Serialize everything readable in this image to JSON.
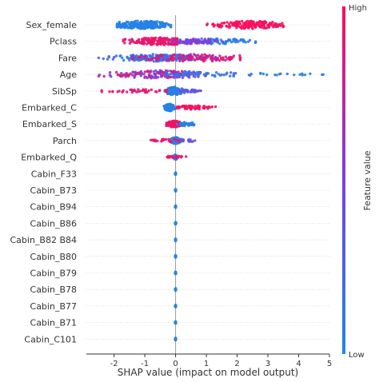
{
  "chart_data": {
    "type": "scatter",
    "subtype": "shap-beeswarm",
    "title": "",
    "xlabel": "SHAP value (impact on model output)",
    "ylabel": "",
    "xlim": [
      -2.9,
      5.0
    ],
    "xticks": [
      -2,
      -1,
      0,
      1,
      2,
      3,
      4,
      5
    ],
    "grid": false,
    "zero_line": true,
    "colorbar": {
      "label": "Feature value",
      "high_label": "High",
      "low_label": "Low",
      "low_color": "#1E88E5",
      "high_color": "#FF0D57",
      "mid_color": "#7B3FE4"
    },
    "features": [
      {
        "name": "Sex_female",
        "groups": [
          {
            "center": -1.05,
            "sd": 0.5,
            "min": -1.9,
            "max": -0.15,
            "n": 230,
            "spread": 5,
            "c": [
              0.0,
              0.08
            ]
          },
          {
            "center": 2.4,
            "sd": 0.55,
            "min": 0.1,
            "max": 3.5,
            "n": 170,
            "spread": 5,
            "c": [
              0.92,
              1.0
            ]
          }
        ]
      },
      {
        "name": "Pclass",
        "groups": [
          {
            "center": -0.5,
            "sd": 0.55,
            "min": -1.7,
            "max": 0.05,
            "n": 160,
            "spread": 5,
            "c": [
              0.85,
              1.0
            ]
          },
          {
            "center": 1.2,
            "sd": 0.7,
            "min": 0.15,
            "max": 2.6,
            "n": 100,
            "spread": 3.5,
            "c": [
              0.0,
              0.15
            ]
          },
          {
            "center": 0.55,
            "sd": 0.4,
            "min": -0.1,
            "max": 1.6,
            "n": 60,
            "spread": 3.5,
            "c": [
              0.45,
              0.6
            ]
          }
        ]
      },
      {
        "name": "Fare",
        "groups": [
          {
            "center": -0.6,
            "sd": 0.75,
            "min": -2.5,
            "max": 0.9,
            "n": 170,
            "spread": 4.5,
            "c": [
              0.0,
              0.3
            ]
          },
          {
            "center": 0.6,
            "sd": 0.9,
            "min": -1.4,
            "max": 2.1,
            "n": 140,
            "spread": 4.5,
            "c": [
              0.6,
              1.0
            ]
          }
        ]
      },
      {
        "name": "Age",
        "groups": [
          {
            "center": -0.4,
            "sd": 0.85,
            "min": -2.5,
            "max": 1.5,
            "n": 180,
            "spread": 5,
            "c": [
              0.35,
              1.0
            ]
          },
          {
            "center": 0.6,
            "sd": 1.1,
            "min": -0.3,
            "max": 4.8,
            "n": 80,
            "spread": 3,
            "c": [
              0.0,
              0.25
            ]
          },
          {
            "center": 3.9,
            "sd": 0.6,
            "min": 2.8,
            "max": 4.8,
            "n": 14,
            "spread": 1,
            "c": [
              0.0,
              0.1
            ]
          }
        ]
      },
      {
        "name": "SibSp",
        "groups": [
          {
            "center": -0.05,
            "sd": 0.15,
            "min": -0.35,
            "max": 0.3,
            "n": 130,
            "spread": 5,
            "c": [
              0.0,
              0.15
            ]
          },
          {
            "center": 0.5,
            "sd": 0.2,
            "min": 0.15,
            "max": 0.9,
            "n": 30,
            "spread": 2,
            "c": [
              0.25,
              0.45
            ]
          },
          {
            "center": -1.3,
            "sd": 0.55,
            "min": -2.4,
            "max": -0.3,
            "n": 40,
            "spread": 2,
            "c": [
              0.85,
              1.0
            ]
          }
        ]
      },
      {
        "name": "Embarked_C",
        "groups": [
          {
            "center": -0.2,
            "sd": 0.08,
            "min": -0.38,
            "max": -0.02,
            "n": 130,
            "spread": 4.5,
            "c": [
              0.0,
              0.08
            ]
          },
          {
            "center": 0.55,
            "sd": 0.3,
            "min": 0.05,
            "max": 1.3,
            "n": 60,
            "spread": 2.5,
            "c": [
              0.9,
              1.0
            ]
          }
        ]
      },
      {
        "name": "Embarked_S",
        "groups": [
          {
            "center": -0.05,
            "sd": 0.12,
            "min": -0.3,
            "max": 0.15,
            "n": 140,
            "spread": 4,
            "c": [
              0.88,
              1.0
            ]
          },
          {
            "center": 0.35,
            "sd": 0.15,
            "min": 0.05,
            "max": 0.6,
            "n": 40,
            "spread": 2.5,
            "c": [
              0.0,
              0.1
            ]
          }
        ]
      },
      {
        "name": "Parch",
        "groups": [
          {
            "center": 0.0,
            "sd": 0.08,
            "min": -0.2,
            "max": 0.2,
            "n": 140,
            "spread": 4,
            "c": [
              0.0,
              0.12
            ]
          },
          {
            "center": -0.3,
            "sd": 0.3,
            "min": -0.8,
            "max": 0.25,
            "n": 25,
            "spread": 2,
            "c": [
              0.85,
              1.0
            ]
          },
          {
            "center": 0.45,
            "sd": 0.15,
            "min": 0.25,
            "max": 0.7,
            "n": 10,
            "spread": 1.5,
            "c": [
              0.3,
              0.5
            ]
          }
        ]
      },
      {
        "name": "Embarked_Q",
        "groups": [
          {
            "center": 0.0,
            "sd": 0.03,
            "min": -0.08,
            "max": 0.08,
            "n": 100,
            "spread": 3,
            "c": [
              0.0,
              0.08
            ]
          },
          {
            "center": 0.0,
            "sd": 0.18,
            "min": -0.3,
            "max": 0.35,
            "n": 20,
            "spread": 1.5,
            "c": [
              0.9,
              1.0
            ]
          }
        ]
      },
      {
        "name": "Cabin_F33",
        "groups": [
          {
            "center": 0.0,
            "sd": 0.004,
            "min": -0.02,
            "max": 0.02,
            "n": 45,
            "spread": 1.2,
            "c": [
              0.0,
              0.05
            ]
          }
        ]
      },
      {
        "name": "Cabin_B73",
        "groups": [
          {
            "center": 0.0,
            "sd": 0.004,
            "min": -0.02,
            "max": 0.02,
            "n": 45,
            "spread": 1.2,
            "c": [
              0.0,
              0.05
            ]
          }
        ]
      },
      {
        "name": "Cabin_B94",
        "groups": [
          {
            "center": 0.0,
            "sd": 0.004,
            "min": -0.02,
            "max": 0.02,
            "n": 45,
            "spread": 1.2,
            "c": [
              0.0,
              0.05
            ]
          }
        ]
      },
      {
        "name": "Cabin_B86",
        "groups": [
          {
            "center": 0.0,
            "sd": 0.004,
            "min": -0.02,
            "max": 0.02,
            "n": 45,
            "spread": 1.2,
            "c": [
              0.0,
              0.05
            ]
          }
        ]
      },
      {
        "name": "Cabin_B82 B84",
        "groups": [
          {
            "center": 0.0,
            "sd": 0.004,
            "min": -0.02,
            "max": 0.02,
            "n": 45,
            "spread": 1.2,
            "c": [
              0.0,
              0.05
            ]
          }
        ]
      },
      {
        "name": "Cabin_B80",
        "groups": [
          {
            "center": 0.0,
            "sd": 0.004,
            "min": -0.02,
            "max": 0.02,
            "n": 45,
            "spread": 1.2,
            "c": [
              0.0,
              0.05
            ]
          }
        ]
      },
      {
        "name": "Cabin_B79",
        "groups": [
          {
            "center": 0.0,
            "sd": 0.004,
            "min": -0.02,
            "max": 0.02,
            "n": 45,
            "spread": 1.2,
            "c": [
              0.0,
              0.05
            ]
          }
        ]
      },
      {
        "name": "Cabin_B78",
        "groups": [
          {
            "center": 0.0,
            "sd": 0.004,
            "min": -0.02,
            "max": 0.02,
            "n": 45,
            "spread": 1.2,
            "c": [
              0.0,
              0.05
            ]
          }
        ]
      },
      {
        "name": "Cabin_B77",
        "groups": [
          {
            "center": 0.0,
            "sd": 0.004,
            "min": -0.02,
            "max": 0.02,
            "n": 45,
            "spread": 1.2,
            "c": [
              0.0,
              0.05
            ]
          }
        ]
      },
      {
        "name": "Cabin_B71",
        "groups": [
          {
            "center": 0.0,
            "sd": 0.004,
            "min": -0.02,
            "max": 0.02,
            "n": 45,
            "spread": 1.2,
            "c": [
              0.0,
              0.05
            ]
          }
        ]
      },
      {
        "name": "Cabin_C101",
        "groups": [
          {
            "center": 0.0,
            "sd": 0.004,
            "min": -0.02,
            "max": 0.02,
            "n": 45,
            "spread": 1.2,
            "c": [
              0.0,
              0.05
            ]
          }
        ]
      }
    ]
  }
}
